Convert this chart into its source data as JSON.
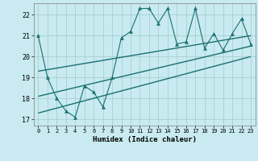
{
  "xlabel": "Humidex (Indice chaleur)",
  "bg_color": "#c8eaf0",
  "grid_color": "#a8d0d0",
  "line_color": "#1a7070",
  "xlim": [
    -0.5,
    23.5
  ],
  "ylim": [
    16.7,
    22.55
  ],
  "xticks": [
    0,
    1,
    2,
    3,
    4,
    5,
    6,
    7,
    8,
    9,
    10,
    11,
    12,
    13,
    14,
    15,
    16,
    17,
    18,
    19,
    20,
    21,
    22,
    23
  ],
  "yticks": [
    17,
    18,
    19,
    20,
    21,
    22
  ],
  "main_x": [
    0,
    1,
    2,
    3,
    4,
    5,
    6,
    7,
    8,
    9,
    10,
    11,
    12,
    13,
    14,
    15,
    16,
    17,
    18,
    19,
    20,
    21,
    22,
    23
  ],
  "main_y": [
    21.0,
    19.0,
    18.0,
    17.4,
    17.1,
    18.6,
    18.3,
    17.6,
    19.0,
    20.9,
    21.2,
    22.3,
    22.3,
    21.6,
    22.3,
    20.6,
    20.7,
    22.3,
    20.4,
    21.1,
    20.3,
    21.1,
    21.8,
    20.6
  ],
  "trend1_x": [
    0,
    23
  ],
  "trend1_y": [
    19.3,
    21.0
  ],
  "trend2_x": [
    0,
    23
  ],
  "trend2_y": [
    18.1,
    20.5
  ],
  "trend3_x": [
    0,
    23
  ],
  "trend3_y": [
    17.3,
    20.0
  ]
}
